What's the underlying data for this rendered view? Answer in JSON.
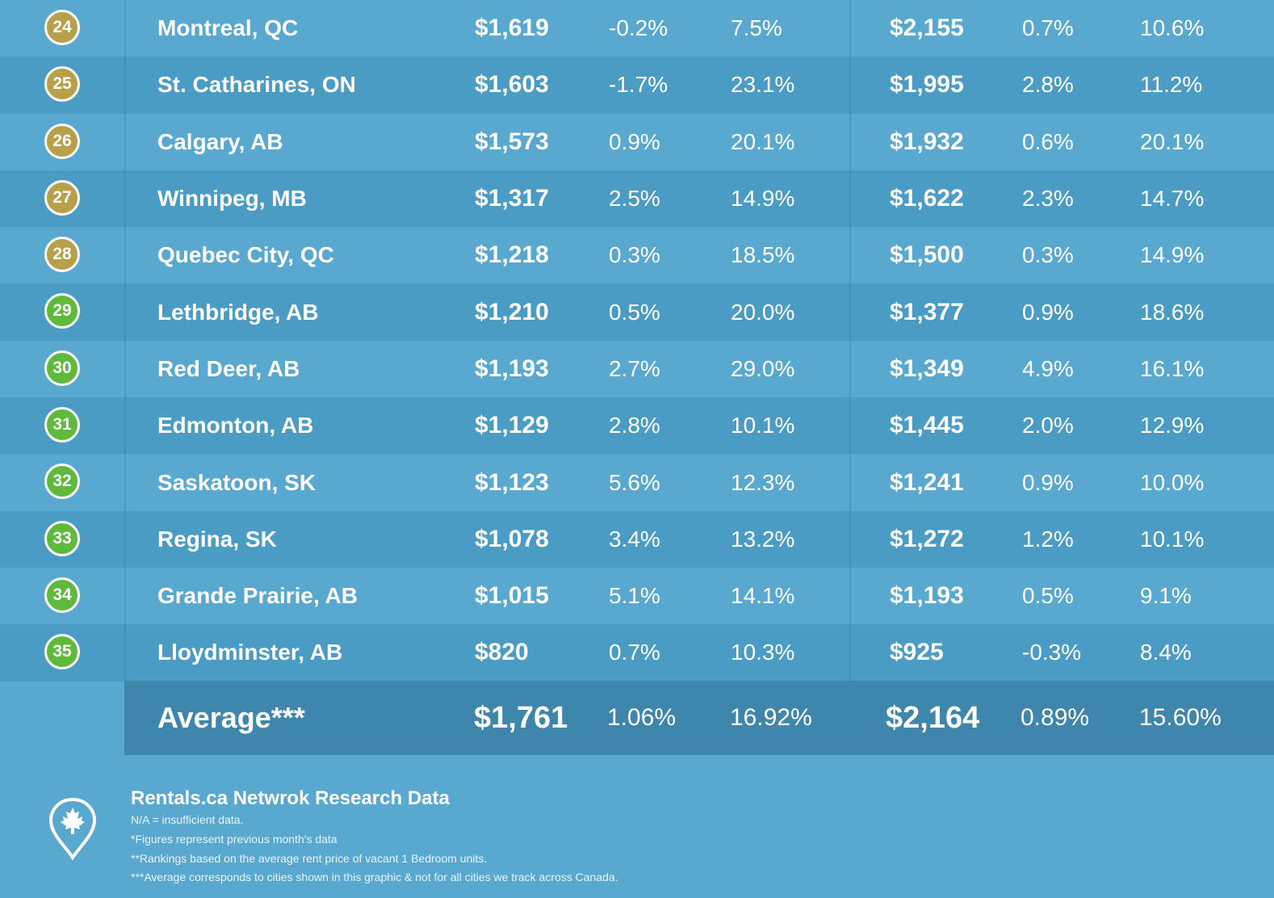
{
  "rows": [
    {
      "rank": "24",
      "badge_color": "gold",
      "city": "Montreal, QC",
      "one_bed_price": "$1,619",
      "one_bed_monthly": "-0.2%",
      "one_bed_yearly": "7.5%",
      "two_bed_price": "$2,155",
      "two_bed_monthly": "0.7%",
      "two_bed_yearly": "10.6%"
    },
    {
      "rank": "25",
      "badge_color": "gold",
      "city": "St. Catharines, ON",
      "one_bed_price": "$1,603",
      "one_bed_monthly": "-1.7%",
      "one_bed_yearly": "23.1%",
      "two_bed_price": "$1,995",
      "two_bed_monthly": "2.8%",
      "two_bed_yearly": "11.2%"
    },
    {
      "rank": "26",
      "badge_color": "gold",
      "city": "Calgary, AB",
      "one_bed_price": "$1,573",
      "one_bed_monthly": "0.9%",
      "one_bed_yearly": "20.1%",
      "two_bed_price": "$1,932",
      "two_bed_monthly": "0.6%",
      "two_bed_yearly": "20.1%"
    },
    {
      "rank": "27",
      "badge_color": "gold",
      "city": "Winnipeg, MB",
      "one_bed_price": "$1,317",
      "one_bed_monthly": "2.5%",
      "one_bed_yearly": "14.9%",
      "two_bed_price": "$1,622",
      "two_bed_monthly": "2.3%",
      "two_bed_yearly": "14.7%"
    },
    {
      "rank": "28",
      "badge_color": "gold",
      "city": "Quebec City, QC",
      "one_bed_price": "$1,218",
      "one_bed_monthly": "0.3%",
      "one_bed_yearly": "18.5%",
      "two_bed_price": "$1,500",
      "two_bed_monthly": "0.3%",
      "two_bed_yearly": "14.9%"
    },
    {
      "rank": "29",
      "badge_color": "green",
      "city": "Lethbridge, AB",
      "one_bed_price": "$1,210",
      "one_bed_monthly": "0.5%",
      "one_bed_yearly": "20.0%",
      "two_bed_price": "$1,377",
      "two_bed_monthly": "0.9%",
      "two_bed_yearly": "18.6%"
    },
    {
      "rank": "30",
      "badge_color": "green",
      "city": "Red Deer, AB",
      "one_bed_price": "$1,193",
      "one_bed_monthly": "2.7%",
      "one_bed_yearly": "29.0%",
      "two_bed_price": "$1,349",
      "two_bed_monthly": "4.9%",
      "two_bed_yearly": "16.1%"
    },
    {
      "rank": "31",
      "badge_color": "green",
      "city": "Edmonton, AB",
      "one_bed_price": "$1,129",
      "one_bed_monthly": "2.8%",
      "one_bed_yearly": "10.1%",
      "two_bed_price": "$1,445",
      "two_bed_monthly": "2.0%",
      "two_bed_yearly": "12.9%"
    },
    {
      "rank": "32",
      "badge_color": "green",
      "city": "Saskatoon, SK",
      "one_bed_price": "$1,123",
      "one_bed_monthly": "5.6%",
      "one_bed_yearly": "12.3%",
      "two_bed_price": "$1,241",
      "two_bed_monthly": "0.9%",
      "two_bed_yearly": "10.0%"
    },
    {
      "rank": "33",
      "badge_color": "green",
      "city": "Regina, SK",
      "one_bed_price": "$1,078",
      "one_bed_monthly": "3.4%",
      "one_bed_yearly": "13.2%",
      "two_bed_price": "$1,272",
      "two_bed_monthly": "1.2%",
      "two_bed_yearly": "10.1%"
    },
    {
      "rank": "34",
      "badge_color": "green",
      "city": "Grande Prairie, AB",
      "one_bed_price": "$1,015",
      "one_bed_monthly": "5.1%",
      "one_bed_yearly": "14.1%",
      "two_bed_price": "$1,193",
      "two_bed_monthly": "0.5%",
      "two_bed_yearly": "9.1%"
    },
    {
      "rank": "35",
      "badge_color": "green",
      "city": "Lloydminster, AB",
      "one_bed_price": "$820",
      "one_bed_monthly": "0.7%",
      "one_bed_yearly": "10.3%",
      "two_bed_price": "$925",
      "two_bed_monthly": "-0.3%",
      "two_bed_yearly": "8.4%"
    }
  ],
  "average": {
    "label": "Average***",
    "one_bed_price": "$1,761",
    "one_bed_monthly": "1.06%",
    "one_bed_yearly": "16.92%",
    "two_bed_price": "$2,164",
    "two_bed_monthly": "0.89%",
    "two_bed_yearly": "15.60%"
  },
  "footer": {
    "title": "Rentals.ca Netwrok Research Data",
    "notes": [
      "N/A = insufficient data.",
      "*Figures represent previous month's data",
      "**Rankings based on the average rent price of vacant 1 Bedroom units.",
      "***Average corresponds to cities shown in this graphic & not for all cities we track across Canada."
    ],
    "icon": "maple-leaf-pin-icon"
  },
  "colors": {
    "background": "#58a8d0",
    "row_alt": "#4b9cc4",
    "average_row": "#3f86ac",
    "badge_gold": "#b8a04a",
    "badge_green": "#5fb93b"
  }
}
